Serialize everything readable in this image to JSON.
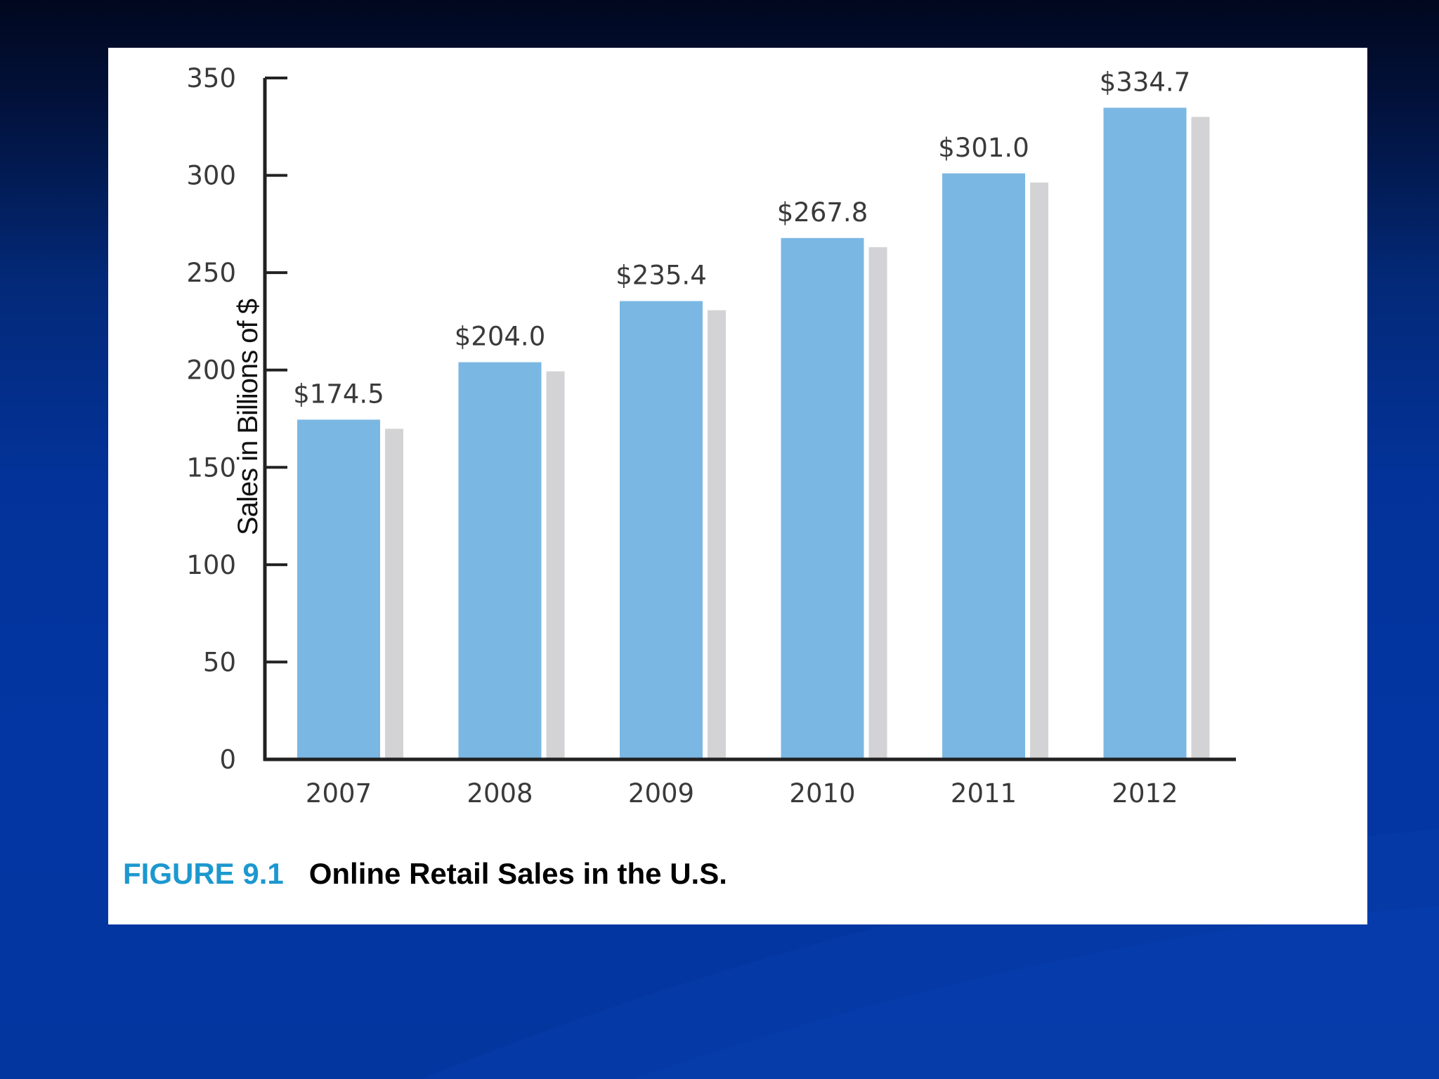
{
  "caption": {
    "label": "FIGURE 9.1",
    "title": "Online Retail Sales in the U.S."
  },
  "colors": {
    "bar": "#7bb7e3",
    "bar_shadow": "#d3d3d6",
    "axis": "#222222",
    "caption_label": "#1c98cf"
  },
  "chart_data": {
    "type": "bar",
    "title": "",
    "xlabel": "",
    "ylabel": "Sales in Billions of $",
    "categories": [
      "2007",
      "2008",
      "2009",
      "2010",
      "2011",
      "2012"
    ],
    "values": [
      174.5,
      204.0,
      235.4,
      267.8,
      301.0,
      334.7
    ],
    "value_labels": [
      "$174.5",
      "$204.0",
      "$235.4",
      "$267.8",
      "$301.0",
      "$334.7"
    ],
    "ylim": [
      0,
      350
    ],
    "yticks": [
      0,
      50,
      100,
      150,
      200,
      250,
      300,
      350
    ],
    "grid": false,
    "legend": "none"
  }
}
